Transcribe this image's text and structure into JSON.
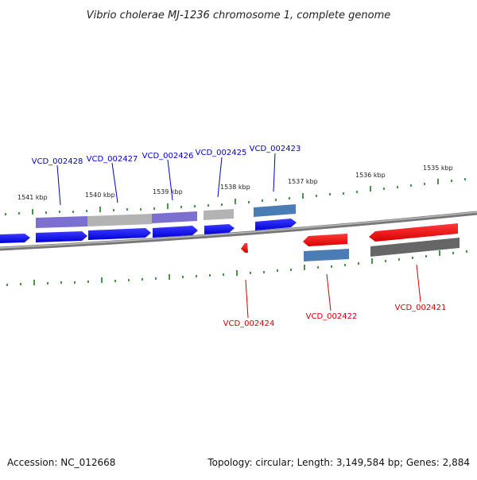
{
  "title": "Vibrio cholerae MJ-1236 chromosome 1, complete genome",
  "accession": "Accession: NC_012668",
  "summary": "Topology: circular; Length: 3,149,584 bp; Genes: 2,884",
  "colors": {
    "forward_label": "#0000cc",
    "reverse_label": "#cc0000",
    "forward_cds": "#0000ff",
    "reverse_cds": "#ff0000",
    "tick": "#1a7a1a",
    "backbone": "#888888"
  },
  "kbp_labels": [
    "1541 kbp",
    "1540 kbp",
    "1539 kbp",
    "1538 kbp",
    "1537 kbp",
    "1536 kbp",
    "1535 kbp"
  ],
  "forward_genes": [
    {
      "label": "VCD_002428",
      "cog_color": "#7b6fd0"
    },
    {
      "label": "VCD_002427",
      "cog_color": "#b3b3b3"
    },
    {
      "label": "VCD_002426",
      "cog_color": "#7b6fd0"
    },
    {
      "label": "VCD_002425",
      "cog_color": "#b3b3b3"
    },
    {
      "label": "VCD_002423",
      "cog_color": "#4a7db5"
    }
  ],
  "reverse_genes": [
    {
      "label": "VCD_002424",
      "cog_color": ""
    },
    {
      "label": "VCD_002422",
      "cog_color": "#4a7db5"
    },
    {
      "label": "VCD_002421",
      "cog_color": "#666666"
    }
  ]
}
